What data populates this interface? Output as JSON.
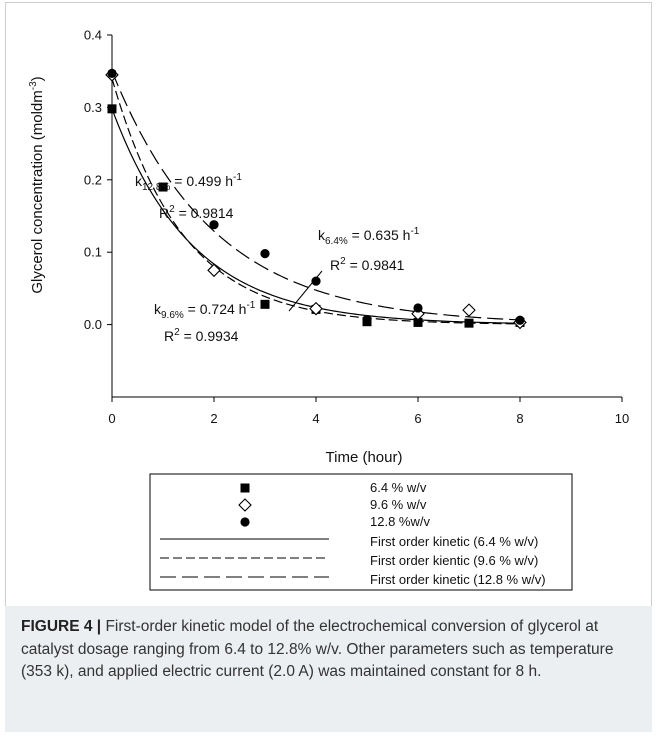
{
  "chart_data": {
    "type": "scatter",
    "xlabel": "Time (hour)",
    "ylabel": "Glycerol concentration (moldm-3)",
    "ylabel_parts": {
      "text": "Glycerol concentration (moldm",
      "sup": "-3",
      "close": ")"
    },
    "xlim": [
      0,
      10
    ],
    "ylim": [
      -0.1,
      0.4
    ],
    "x_ticks": [
      0,
      2,
      4,
      6,
      8,
      10
    ],
    "y_ticks": [
      "0.4",
      "0.3",
      "0.2",
      "0.1",
      "0.0"
    ],
    "y_tick_values": [
      0.4,
      0.3,
      0.2,
      0.1,
      0.0
    ],
    "grid": false,
    "series": [
      {
        "name": "6.4 % w/v",
        "marker": "square",
        "x": [
          0,
          1,
          3,
          4,
          5,
          6,
          7,
          8
        ],
        "y": [
          0.298,
          0.19,
          0.028,
          0.021,
          0.004,
          0.003,
          0.002,
          0.003
        ]
      },
      {
        "name": "9.6 % w/v",
        "marker": "diamond",
        "x": [
          0,
          2,
          4,
          6,
          7,
          8
        ],
        "y": [
          0.345,
          0.075,
          0.022,
          0.015,
          0.02,
          0.003
        ]
      },
      {
        "name": "12.8 %w/v",
        "marker": "circle",
        "x": [
          0,
          2,
          3,
          4,
          5,
          6,
          8
        ],
        "y": [
          0.347,
          0.138,
          0.098,
          0.06,
          0.007,
          0.023,
          0.006
        ]
      }
    ],
    "fits": [
      {
        "name": "First order kinetic (6.4 % w/v)",
        "style": "solid",
        "c0": 0.298,
        "k": 0.635
      },
      {
        "name": "First order kientic (9.6 % w/v)",
        "style": "dash",
        "c0": 0.34,
        "k": 0.724
      },
      {
        "name": "First order kinetic (12.8 % w/v)",
        "style": "longdash",
        "c0": 0.35,
        "k": 0.499
      }
    ],
    "annotations": [
      {
        "k_label": "k",
        "k_sub": "12.8%",
        "k_value": " = 0.499 h",
        "k_sup": "-1",
        "r2": "R",
        "r2_sup": "2",
        "r2_value": " = 0.9814"
      },
      {
        "k_label": "k",
        "k_sub": "6.4%",
        "k_value": " = 0.635 h",
        "k_sup": "-1",
        "r2": "R",
        "r2_sup": "2",
        "r2_value": " = 0.9841"
      },
      {
        "k_label": "k",
        "k_sub": "9.6%",
        "k_value": " = 0.724 h",
        "k_sup": "-1",
        "r2": "R",
        "r2_sup": "2",
        "r2_value": " = 0.9934"
      }
    ],
    "legend": {
      "placement": "bottom",
      "entries": [
        {
          "symbol": "square",
          "label": "6.4 % w/v"
        },
        {
          "symbol": "diamond",
          "label": "9.6 % w/v"
        },
        {
          "symbol": "circle",
          "label": "12.8 %w/v"
        },
        {
          "symbol": "solid",
          "label": "First order kinetic (6.4 % w/v)"
        },
        {
          "symbol": "dash",
          "label": "First order kientic (9.6 % w/v)"
        },
        {
          "symbol": "longdash",
          "label": "First order kinetic (12.8 % w/v)"
        }
      ]
    }
  },
  "caption": {
    "label": "FIGURE 4 |",
    "text": " First-order kinetic model of the electrochemical conversion of glycerol at catalyst dosage ranging from 6.4 to 12.8% w/v. Other parameters such as temperature (353 k), and applied electric current (2.0 A) was maintained constant for 8 h."
  }
}
